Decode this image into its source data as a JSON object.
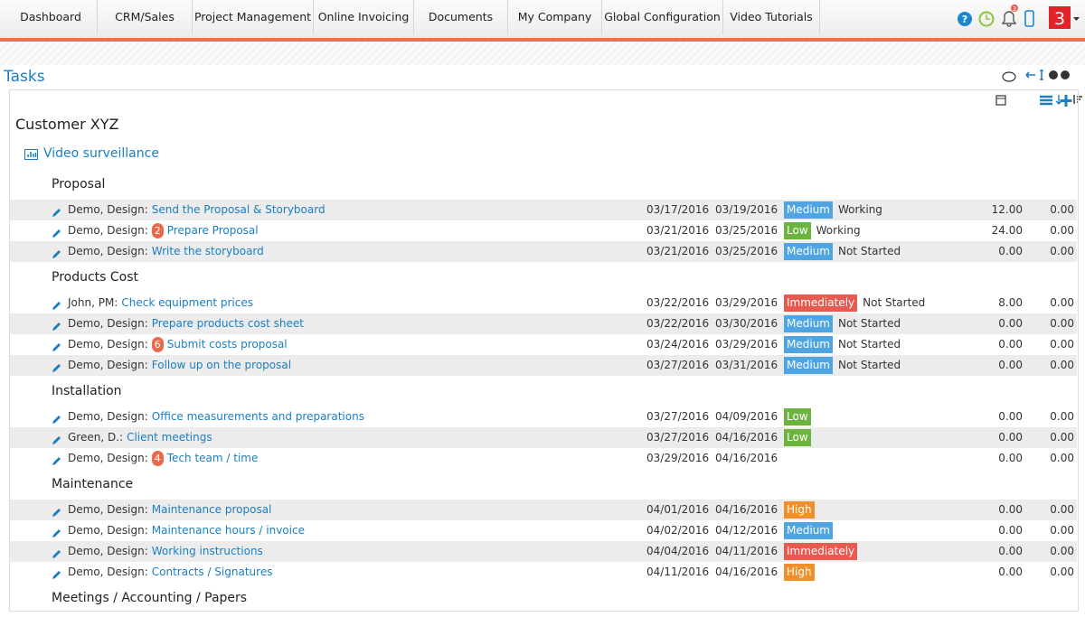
{
  "nav": {
    "items": [
      "Dashboard",
      "CRM/Sales",
      "Project Management",
      "Online Invoicing",
      "Documents",
      "My Company",
      "Global Configuration",
      "Video Tutorials"
    ],
    "notifications": 3,
    "logo": "3"
  },
  "page": {
    "title": "Tasks"
  },
  "customer": "Customer XYZ",
  "project": "Video surveillance",
  "groups": [
    {
      "name": "Proposal",
      "tasks": [
        {
          "assignee": "Demo, Design:",
          "name": "Send the Proposal & Storyboard",
          "start": "03/17/2016",
          "end": "03/19/2016",
          "priority": "Medium",
          "priority_color": "#4ea5e2",
          "status": "Working",
          "hours": "12.00",
          "extra": "0.00"
        },
        {
          "assignee": "Demo, Design:",
          "badge": 2,
          "name": "Prepare Proposal",
          "start": "03/21/2016",
          "end": "03/25/2016",
          "priority": "Low",
          "priority_color": "#6cb33f",
          "status": "Working",
          "hours": "24.00",
          "extra": "0.00"
        },
        {
          "assignee": "Demo, Design:",
          "name": "Write the storyboard",
          "start": "03/21/2016",
          "end": "03/25/2016",
          "priority": "Medium",
          "priority_color": "#4ea5e2",
          "status": "Not Started",
          "hours": "0.00",
          "extra": "0.00"
        }
      ]
    },
    {
      "name": "Products Cost",
      "tasks": [
        {
          "assignee": "John, PM:",
          "name": "Check equipment prices",
          "start": "03/22/2016",
          "end": "03/29/2016",
          "priority": "Immediately",
          "priority_color": "#e8594f",
          "status": "Not Started",
          "hours": "8.00",
          "extra": "0.00"
        },
        {
          "assignee": "Demo, Design:",
          "name": "Prepare products cost sheet",
          "start": "03/22/2016",
          "end": "03/30/2016",
          "priority": "Medium",
          "priority_color": "#4ea5e2",
          "status": "Not Started",
          "hours": "0.00",
          "extra": "0.00"
        },
        {
          "assignee": "Demo, Design:",
          "badge": 6,
          "name": "Submit costs proposal",
          "start": "03/24/2016",
          "end": "03/29/2016",
          "priority": "Medium",
          "priority_color": "#4ea5e2",
          "status": "Not Started",
          "hours": "0.00",
          "extra": "0.00"
        },
        {
          "assignee": "Demo, Design:",
          "name": "Follow up on the proposal",
          "start": "03/27/2016",
          "end": "03/31/2016",
          "priority": "Medium",
          "priority_color": "#4ea5e2",
          "status": "Not Started",
          "hours": "0.00",
          "extra": "0.00"
        }
      ]
    },
    {
      "name": "Installation",
      "tasks": [
        {
          "assignee": "Demo, Design:",
          "name": "Office measurements and preparations",
          "start": "03/27/2016",
          "end": "04/09/2016",
          "priority": "Low",
          "priority_color": "#6cb33f",
          "hours": "0.00",
          "extra": "0.00"
        },
        {
          "assignee": "Green, D.:",
          "name": "Client meetings",
          "start": "03/27/2016",
          "end": "04/16/2016",
          "priority": "Low",
          "priority_color": "#6cb33f",
          "hours": "0.00",
          "extra": "0.00"
        },
        {
          "assignee": "Demo, Design:",
          "badge": 4,
          "name": "Tech team / time",
          "start": "03/29/2016",
          "end": "04/16/2016",
          "hours": "0.00",
          "extra": "0.00"
        }
      ]
    },
    {
      "name": "Maintenance",
      "tasks": [
        {
          "assignee": "Demo, Design:",
          "name": "Maintenance proposal",
          "start": "04/01/2016",
          "end": "04/16/2016",
          "priority": "High",
          "priority_color": "#f0902a",
          "hours": "0.00",
          "extra": "0.00"
        },
        {
          "assignee": "Demo, Design:",
          "name": "Maintenance hours / invoice",
          "start": "04/02/2016",
          "end": "04/12/2016",
          "priority": "Medium",
          "priority_color": "#4ea5e2",
          "hours": "0.00",
          "extra": "0.00"
        },
        {
          "assignee": "Demo, Design:",
          "name": "Working instructions",
          "start": "04/04/2016",
          "end": "04/11/2016",
          "priority": "Immediately",
          "priority_color": "#e8594f",
          "hours": "0.00",
          "extra": "0.00"
        },
        {
          "assignee": "Demo, Design:",
          "name": "Contracts / Signatures",
          "start": "04/11/2016",
          "end": "04/16/2016",
          "priority": "High",
          "priority_color": "#f0902a",
          "hours": "0.00",
          "extra": "0.00"
        }
      ]
    },
    {
      "name": "Meetings / Accounting / Papers",
      "tasks": []
    }
  ]
}
